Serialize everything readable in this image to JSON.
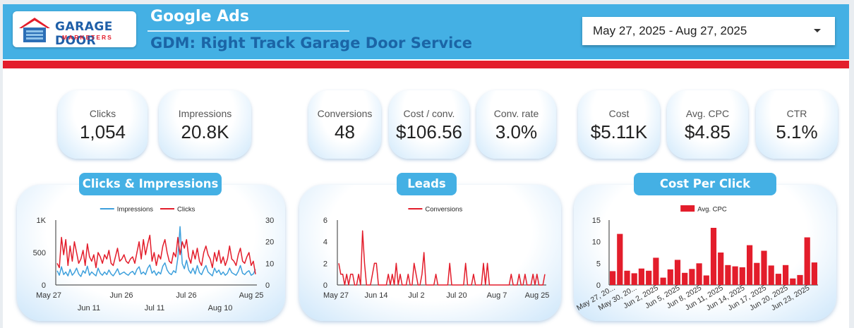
{
  "header": {
    "logo_line1": "GARAGE DOOR",
    "logo_line2": "MARKETERS",
    "title": "Google Ads",
    "subtitle": "GDM: Right Track Garage Door Service",
    "date_range": "May 27, 2025 - Aug 27, 2025",
    "brand_blue": "#44b0e4",
    "brand_red": "#e31d2b"
  },
  "kpis": [
    {
      "label": "Clicks",
      "value": "1,054"
    },
    {
      "label": "Impressions",
      "value": "20.8K"
    },
    {
      "label": "Conversions",
      "value": "48"
    },
    {
      "label": "Cost / conv.",
      "value": "$106.56"
    },
    {
      "label": "Conv. rate",
      "value": "3.0%"
    },
    {
      "label": "Cost",
      "value": "$5.11K"
    },
    {
      "label": "Avg. CPC",
      "value": "$4.85"
    },
    {
      "label": "CTR",
      "value": "5.1%"
    }
  ],
  "chart_data": [
    {
      "type": "line",
      "title": "Clicks & Impressions",
      "legend_position": "top",
      "x_ticks_upper": [
        "May 27",
        "Jun 26",
        "Jul 26",
        "Aug 25"
      ],
      "x_ticks_lower": [
        "Jun 11",
        "Jul 11",
        "Aug 10"
      ],
      "y_left_ticks": [
        "1K",
        "500",
        "0"
      ],
      "y_right_ticks": [
        "30",
        "20",
        "10",
        "0"
      ],
      "y_left_range": [
        0,
        1000
      ],
      "y_right_range": [
        0,
        30
      ],
      "series": [
        {
          "name": "Impressions",
          "axis": "left",
          "color": "#3ea0dc",
          "values": [
            220,
            150,
            280,
            160,
            200,
            140,
            240,
            150,
            190,
            260,
            170,
            130,
            220,
            180,
            290,
            150,
            200,
            170,
            140,
            260,
            180,
            150,
            200,
            160,
            230,
            170,
            140,
            190,
            250,
            160,
            180,
            200,
            170,
            150,
            190,
            210,
            160,
            240,
            280,
            170,
            200,
            160,
            260,
            310,
            180,
            220,
            150,
            200,
            170,
            290,
            340,
            230,
            180,
            160,
            220,
            190,
            420,
            900,
            330,
            250,
            380,
            230,
            180,
            260,
            170,
            300,
            190,
            160,
            240,
            300,
            200,
            170,
            140,
            260,
            190,
            230,
            160,
            200,
            150,
            180,
            260,
            190,
            170,
            150,
            210,
            300,
            180,
            160,
            200,
            220,
            150,
            170,
            240
          ]
        },
        {
          "name": "Clicks",
          "axis": "right",
          "color": "#e31d2b",
          "values": [
            10,
            8,
            22,
            14,
            21,
            9,
            18,
            11,
            20,
            15,
            10,
            12,
            16,
            9,
            19,
            13,
            11,
            14,
            8,
            15,
            13,
            10,
            14,
            12,
            16,
            10,
            9,
            13,
            17,
            11,
            12,
            14,
            11,
            10,
            12,
            13,
            10,
            15,
            20,
            12,
            21,
            14,
            19,
            23,
            11,
            15,
            9,
            14,
            12,
            18,
            21,
            15,
            11,
            10,
            15,
            13,
            22,
            14,
            20,
            17,
            21,
            13,
            10,
            16,
            12,
            17,
            11,
            9,
            15,
            18,
            14,
            12,
            8,
            15,
            11,
            16,
            10,
            13,
            9,
            12,
            18,
            12,
            11,
            9,
            14,
            17,
            11,
            10,
            13,
            15,
            9,
            11,
            5
          ]
        }
      ]
    },
    {
      "type": "line",
      "title": "Leads",
      "legend_position": "top",
      "x_ticks": [
        "May 27",
        "Jun 14",
        "Jul 2",
        "Jul 20",
        "Aug 7",
        "Aug 25"
      ],
      "y_ticks": [
        "6",
        "4",
        "2",
        "0"
      ],
      "y_range": [
        0,
        6
      ],
      "series": [
        {
          "name": "Conversions",
          "color": "#e31d2b",
          "values": [
            2,
            1,
            1,
            0,
            1,
            0,
            1,
            1,
            0,
            0,
            1,
            0,
            5,
            2,
            0,
            0,
            0,
            1,
            2,
            2,
            0,
            0,
            0,
            0,
            0,
            1,
            0,
            1,
            0,
            2,
            0,
            1,
            0,
            0,
            0,
            1,
            0,
            0,
            2,
            1,
            0,
            0,
            1,
            3,
            0,
            0,
            0,
            0,
            0,
            1,
            0,
            0,
            0,
            0,
            0,
            0,
            2,
            0,
            0,
            0,
            0,
            0,
            0,
            0,
            2,
            0,
            0,
            0,
            1,
            0,
            0,
            0,
            0,
            2,
            0,
            2,
            0,
            0,
            0,
            0,
            0,
            0,
            0,
            0,
            0,
            0,
            0,
            1,
            0,
            0,
            0,
            1,
            0,
            0,
            1,
            0,
            0,
            0,
            1,
            0,
            1,
            0,
            0,
            0,
            1
          ]
        }
      ]
    },
    {
      "type": "bar",
      "title": "Cost Per Click",
      "legend_position": "top",
      "series_name": "Avg. CPC",
      "color": "#e31d2b",
      "x_tick_labels": [
        "May 27, 20...",
        "May 30, 20...",
        "Jun 2, 2025",
        "Jun 5, 2025",
        "Jun 8, 2025",
        "Jun 11, 2025",
        "Jun 14, 2025",
        "Jun 17, 2025",
        "Jun 20, 2025",
        "Jun 23, 2025"
      ],
      "y_ticks": [
        "15",
        "10",
        "5",
        "0"
      ],
      "y_range": [
        0,
        15
      ],
      "values": [
        3.2,
        11.8,
        3.3,
        2.7,
        3.8,
        3.3,
        6.3,
        1.7,
        3.6,
        5.8,
        2.8,
        3.7,
        5.0,
        2.2,
        13.2,
        7.5,
        4.6,
        4.3,
        4.1,
        9.2,
        5.1,
        7.9,
        4.5,
        2.6,
        4.6,
        1.5,
        2.3,
        11.0,
        5.2
      ]
    }
  ]
}
